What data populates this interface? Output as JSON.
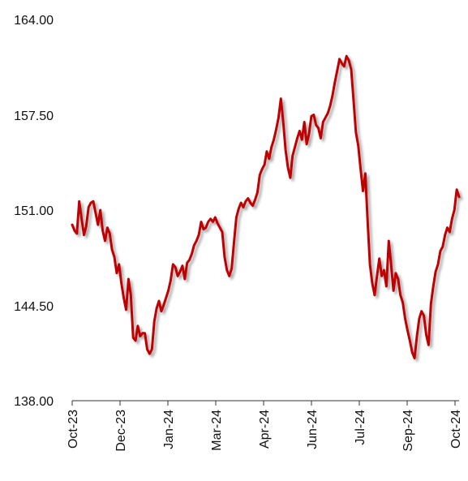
{
  "chart_data": {
    "type": "line",
    "title": "",
    "xlabel": "",
    "ylabel": "",
    "ylim": [
      138.0,
      164.0
    ],
    "yticks": [
      "164.00",
      "157.50",
      "151.00",
      "144.50",
      "138.00"
    ],
    "ytick_values": [
      164.0,
      157.5,
      151.0,
      144.5,
      138.0
    ],
    "xticks": [
      "Oct-23",
      "Dec-23",
      "Jan-24",
      "Mar-24",
      "Apr-24",
      "Jun-24",
      "Jul-24",
      "Sep-24",
      "Oct-24"
    ],
    "grid": false,
    "legend": "none",
    "line_color": "#c00000",
    "series": [
      {
        "values": [
          150.0,
          149.6,
          149.4,
          151.6,
          150.4,
          149.3,
          149.9,
          151.2,
          151.5,
          151.6,
          150.8,
          150.0,
          151.0,
          149.6,
          148.9,
          149.8,
          149.4,
          148.3,
          147.8,
          146.7,
          147.3,
          146.0,
          145.0,
          144.2,
          146.3,
          145.2,
          142.3,
          142.1,
          143.1,
          142.4,
          142.6,
          142.6,
          141.5,
          141.2,
          141.5,
          143.4,
          144.3,
          144.8,
          144.1,
          144.5,
          145.0,
          145.5,
          146.2,
          147.3,
          147.1,
          146.5,
          146.8,
          147.2,
          146.3,
          147.4,
          147.6,
          148.0,
          148.6,
          148.9,
          149.3,
          150.2,
          149.7,
          149.8,
          150.2,
          150.4,
          150.2,
          150.5,
          150.1,
          149.8,
          149.5,
          147.8,
          146.9,
          146.5,
          147.0,
          148.8,
          150.5,
          151.1,
          151.5,
          151.2,
          151.6,
          151.8,
          151.5,
          151.3,
          151.7,
          152.2,
          153.4,
          153.8,
          154.1,
          155.0,
          154.5,
          155.3,
          155.8,
          156.5,
          157.3,
          158.6,
          157.0,
          155.1,
          153.9,
          153.2,
          154.7,
          155.3,
          155.9,
          156.4,
          155.8,
          157.0,
          155.5,
          156.2,
          157.4,
          157.5,
          156.8,
          156.6,
          155.9,
          157.0,
          157.3,
          157.6,
          158.1,
          158.8,
          159.7,
          160.5,
          161.3,
          161.0,
          160.8,
          161.5,
          161.2,
          160.6,
          158.5,
          156.3,
          155.4,
          153.8,
          152.3,
          153.5,
          150.2,
          147.3,
          146.0,
          145.2,
          146.5,
          147.7,
          146.5,
          146.9,
          145.8,
          148.9,
          147.3,
          145.5,
          146.7,
          146.3,
          145.2,
          144.7,
          143.6,
          142.8,
          142.1,
          141.3,
          140.9,
          142.4,
          143.6,
          144.1,
          143.8,
          142.5,
          141.8,
          144.6,
          145.8,
          146.8,
          147.3,
          148.2,
          148.5,
          149.3,
          149.8,
          149.5,
          150.4,
          151.0,
          152.4,
          151.9
        ]
      }
    ]
  }
}
